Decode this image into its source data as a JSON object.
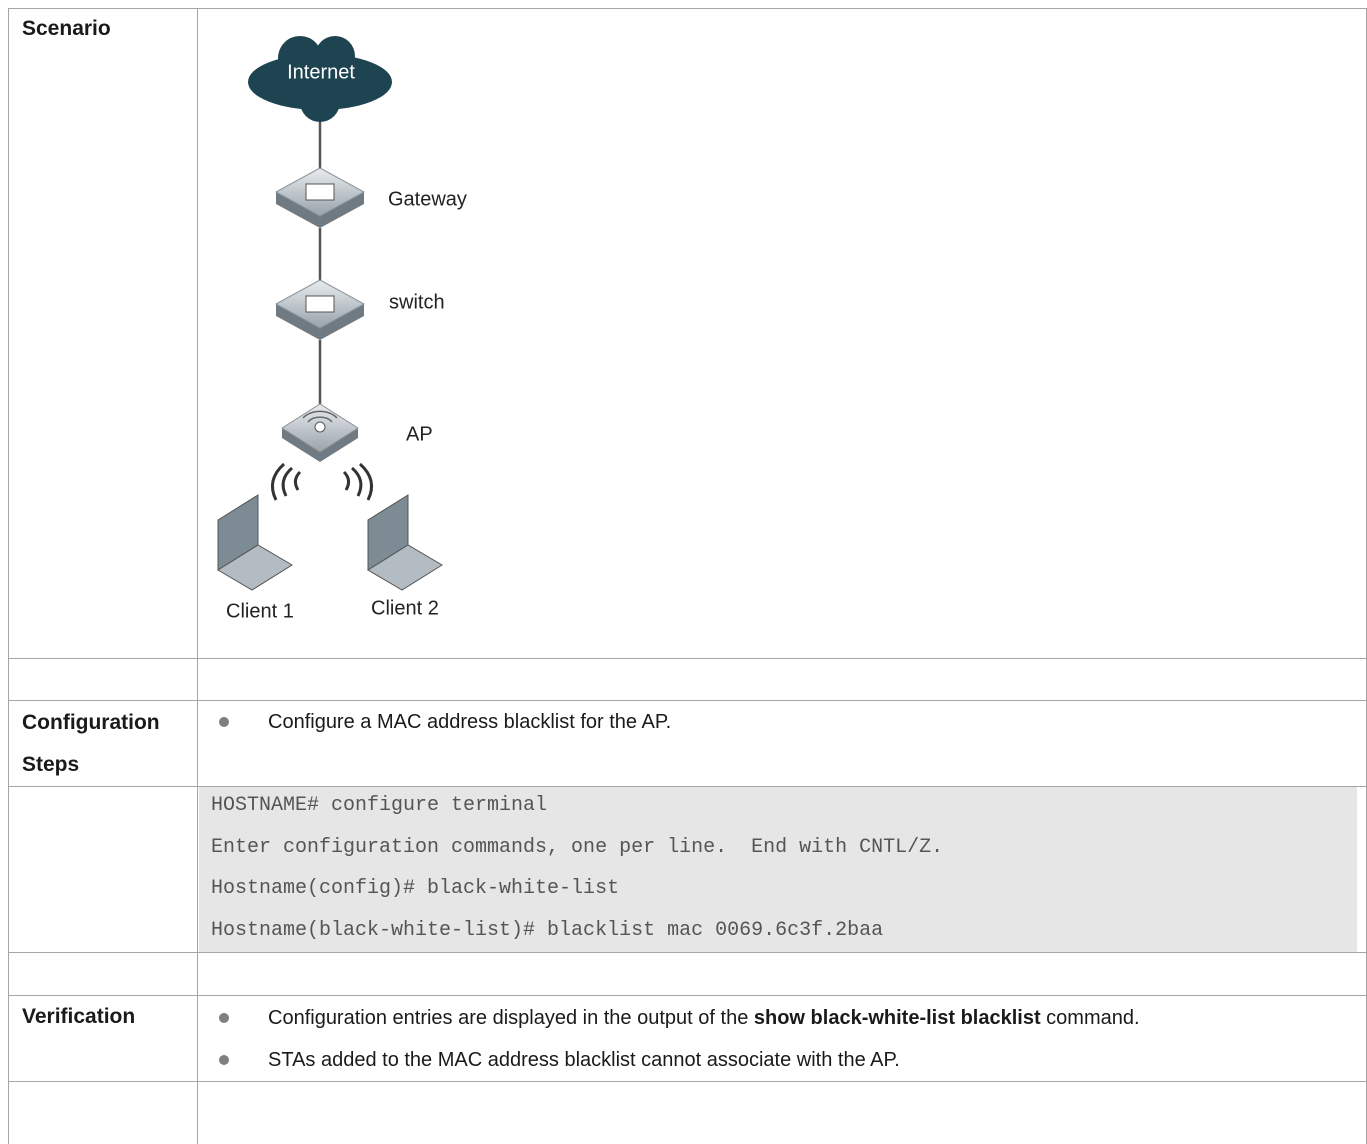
{
  "scenario": {
    "label": "Scenario",
    "diagram": {
      "internet": "Internet",
      "gateway": "Gateway",
      "switch": "switch",
      "ap": "AP",
      "clients": [
        "Client 1",
        "Client 2"
      ]
    }
  },
  "configuration": {
    "label": "Configuration Steps",
    "bullets": [
      "Configure a MAC address blacklist for the AP."
    ],
    "code": [
      "HOSTNAME# configure terminal",
      "Enter configuration commands, one per line.  End with CNTL/Z.",
      "Hostname(config)# black-white-list",
      "Hostname(black-white-list)# blacklist mac 0069.6c3f.2baa"
    ]
  },
  "verification": {
    "label": "Verification",
    "bullets": [
      {
        "before": "Configuration entries are displayed in the output of the ",
        "command": "show black-white-list blacklist",
        "after": " command."
      },
      {
        "text": "STAs added to the MAC address blacklist cannot associate with the AP."
      }
    ]
  }
}
